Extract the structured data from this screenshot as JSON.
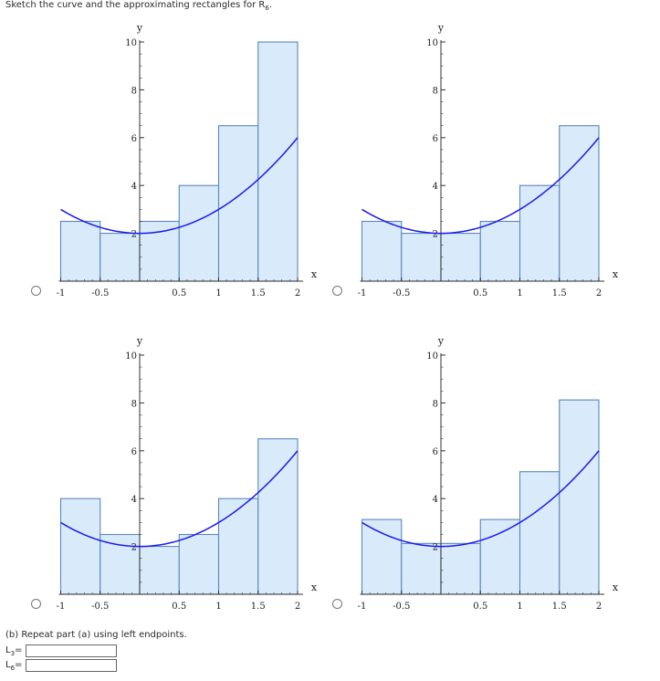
{
  "prompt": {
    "text": "Sketch the curve and the approximating rectangles for R",
    "sub": "6",
    "end": "."
  },
  "graphs": [
    {
      "id": "g1",
      "heights": [
        2.5,
        2.0,
        2.5,
        4.0,
        6.5,
        10.0
      ]
    },
    {
      "id": "g2",
      "heights": [
        2.5,
        2.0,
        2.0,
        2.5,
        4.0,
        6.5
      ]
    },
    {
      "id": "g3",
      "heights": [
        4.0,
        2.5,
        2.0,
        2.5,
        4.0,
        6.5
      ]
    },
    {
      "id": "g4",
      "heights": [
        3.125,
        2.125,
        2.125,
        3.125,
        5.125,
        8.125
      ]
    }
  ],
  "axes": {
    "x_label": "x",
    "y_label": "y",
    "x_ticks": [
      {
        "v": -1,
        "t": "-1"
      },
      {
        "v": -0.5,
        "t": "-0.5"
      },
      {
        "v": 0.5,
        "t": "0.5"
      },
      {
        "v": 1,
        "t": "1"
      },
      {
        "v": 1.5,
        "t": "1.5"
      },
      {
        "v": 2,
        "t": "2"
      }
    ],
    "y_ticks": [
      {
        "v": 2,
        "t": "2"
      },
      {
        "v": 4,
        "t": "4"
      },
      {
        "v": 6,
        "t": "6"
      },
      {
        "v": 8,
        "t": "8"
      },
      {
        "v": 10,
        "t": "10"
      }
    ],
    "x_range": [
      -1,
      2
    ],
    "y_range": [
      0,
      10
    ]
  },
  "colors": {
    "curve": "#1a1aee",
    "rect_fill": "#d9ebfb",
    "rect_stroke": "#5a86bd",
    "axis": "#333333"
  },
  "part_b": {
    "text": "(b) Repeat part (a) using left endpoints.",
    "l3_label": "L",
    "l3_sub": "3",
    "l6_label": "L",
    "l6_sub": "6",
    "eq": "=",
    "l3_value": "",
    "l6_value": ""
  }
}
